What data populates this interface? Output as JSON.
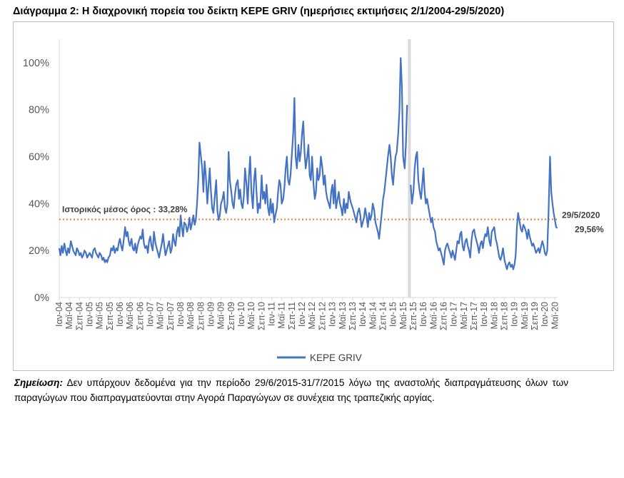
{
  "title": "Διάγραμμα 2: Η διαχρονική πορεία του δείκτη ΚΕΡΕ GRIV (ημερήσιες εκτιμήσεις 2/1/2004-29/5/2020)",
  "note": {
    "lead": "Σημείωση:",
    "text": "Δεν υπάρχουν δεδομένα για την περίοδο 29/6/2015-31/7/2015 λόγω της αναστολής διαπραγμάτευσης όλων των παραγώγων που διαπραγματεύονται στην Αγορά Παραγώγων σε συνέχεια της τραπεζικής αργίας."
  },
  "colors": {
    "series": "#4472c4",
    "mean": "#ed7d31",
    "gap": "#d9d9d9",
    "axis": "#d9d9d9"
  },
  "chart_data": {
    "type": "line",
    "title": "",
    "xlabel": "",
    "ylabel": "",
    "ylim": [
      0,
      110
    ],
    "yticks": [
      0,
      20,
      40,
      60,
      80,
      100
    ],
    "ytick_labels": [
      "0%",
      "20%",
      "40%",
      "60%",
      "80%",
      "100%"
    ],
    "xlim": [
      2004.0,
      2020.42
    ],
    "x_tick_labels": [
      "Ιαν-04",
      "Μαϊ-04",
      "Σεπ-04",
      "Ιαν-05",
      "Μαϊ-05",
      "Σεπ-05",
      "Ιαν-06",
      "Μαϊ-06",
      "Σεπ-06",
      "Ιαν-07",
      "Μαϊ-07",
      "Σεπ-07",
      "Ιαν-08",
      "Μαϊ-08",
      "Σεπ-08",
      "Ιαν-09",
      "Μαϊ-09",
      "Σεπ-09",
      "Ιαν-10",
      "Μαϊ-10",
      "Σεπ-10",
      "Ιαν-11",
      "Μαϊ-11",
      "Σεπ-11",
      "Ιαν-12",
      "Μαϊ-12",
      "Σεπ-12",
      "Ιαν-13",
      "Μαϊ-13",
      "Σεπ-13",
      "Ιαν-14",
      "Μαϊ-14",
      "Σεπ-14",
      "Ιαν-15",
      "Μαϊ-15",
      "Σεπ-15",
      "Ιαν-16",
      "Μαϊ-16",
      "Σεπ-16",
      "Ιαν-17",
      "Μαϊ-17",
      "Σεπ-17",
      "Ιαν-18",
      "Μαϊ-18",
      "Σεπ-18",
      "Ιαν-19",
      "Μαϊ-19",
      "Σεπ-19",
      "Ιαν-20",
      "Μαϊ-20"
    ],
    "grid": false,
    "legend": "bottom",
    "mean_line": {
      "value": 33.28,
      "label": "Ιστορικός μέσος όρος : 33,28%"
    },
    "gap_period": {
      "from": 2015.49,
      "to": 2015.58
    },
    "end_annotation": {
      "date": "29/5/2020",
      "value_label": "29,56%",
      "value": 29.56
    },
    "series": [
      {
        "name": "ΚΕΡΕ GRIV",
        "x": [
          2004.0,
          2004.04,
          2004.08,
          2004.12,
          2004.17,
          2004.21,
          2004.25,
          2004.29,
          2004.33,
          2004.38,
          2004.42,
          2004.46,
          2004.5,
          2004.54,
          2004.58,
          2004.62,
          2004.67,
          2004.71,
          2004.75,
          2004.79,
          2004.83,
          2004.88,
          2004.92,
          2004.96,
          2005.0,
          2005.04,
          2005.08,
          2005.12,
          2005.17,
          2005.21,
          2005.25,
          2005.29,
          2005.33,
          2005.38,
          2005.42,
          2005.46,
          2005.5,
          2005.54,
          2005.58,
          2005.62,
          2005.67,
          2005.71,
          2005.75,
          2005.79,
          2005.83,
          2005.88,
          2005.92,
          2005.96,
          2006.0,
          2006.04,
          2006.08,
          2006.12,
          2006.17,
          2006.21,
          2006.25,
          2006.29,
          2006.33,
          2006.38,
          2006.42,
          2006.46,
          2006.5,
          2006.54,
          2006.58,
          2006.62,
          2006.67,
          2006.71,
          2006.75,
          2006.79,
          2006.83,
          2006.88,
          2006.92,
          2006.96,
          2007.0,
          2007.04,
          2007.08,
          2007.12,
          2007.17,
          2007.21,
          2007.25,
          2007.29,
          2007.33,
          2007.38,
          2007.42,
          2007.46,
          2007.5,
          2007.54,
          2007.58,
          2007.62,
          2007.67,
          2007.71,
          2007.75,
          2007.79,
          2007.83,
          2007.88,
          2007.92,
          2007.96,
          2008.0,
          2008.04,
          2008.08,
          2008.12,
          2008.17,
          2008.21,
          2008.25,
          2008.29,
          2008.33,
          2008.38,
          2008.42,
          2008.46,
          2008.5,
          2008.54,
          2008.58,
          2008.62,
          2008.67,
          2008.71,
          2008.75,
          2008.79,
          2008.83,
          2008.88,
          2008.92,
          2008.96,
          2009.0,
          2009.04,
          2009.08,
          2009.12,
          2009.17,
          2009.21,
          2009.25,
          2009.29,
          2009.33,
          2009.38,
          2009.42,
          2009.46,
          2009.5,
          2009.54,
          2009.58,
          2009.62,
          2009.67,
          2009.71,
          2009.75,
          2009.79,
          2009.83,
          2009.88,
          2009.92,
          2009.96,
          2010.0,
          2010.04,
          2010.08,
          2010.12,
          2010.17,
          2010.21,
          2010.25,
          2010.29,
          2010.33,
          2010.38,
          2010.42,
          2010.46,
          2010.5,
          2010.54,
          2010.58,
          2010.62,
          2010.67,
          2010.71,
          2010.75,
          2010.79,
          2010.83,
          2010.88,
          2010.92,
          2010.96,
          2011.0,
          2011.04,
          2011.08,
          2011.12,
          2011.17,
          2011.21,
          2011.25,
          2011.29,
          2011.33,
          2011.38,
          2011.42,
          2011.46,
          2011.5,
          2011.54,
          2011.58,
          2011.62,
          2011.67,
          2011.71,
          2011.75,
          2011.79,
          2011.83,
          2011.88,
          2011.92,
          2011.96,
          2012.0,
          2012.04,
          2012.08,
          2012.12,
          2012.17,
          2012.21,
          2012.25,
          2012.29,
          2012.33,
          2012.38,
          2012.42,
          2012.46,
          2012.5,
          2012.54,
          2012.58,
          2012.62,
          2012.67,
          2012.71,
          2012.75,
          2012.79,
          2012.83,
          2012.88,
          2012.92,
          2012.96,
          2013.0,
          2013.04,
          2013.08,
          2013.12,
          2013.17,
          2013.21,
          2013.25,
          2013.29,
          2013.33,
          2013.38,
          2013.42,
          2013.46,
          2013.5,
          2013.54,
          2013.58,
          2013.62,
          2013.67,
          2013.71,
          2013.75,
          2013.79,
          2013.83,
          2013.88,
          2013.92,
          2013.96,
          2014.0,
          2014.04,
          2014.08,
          2014.12,
          2014.17,
          2014.21,
          2014.25,
          2014.29,
          2014.33,
          2014.38,
          2014.42,
          2014.46,
          2014.5,
          2014.54,
          2014.58,
          2014.62,
          2014.67,
          2014.71,
          2014.75,
          2014.79,
          2014.83,
          2014.88,
          2014.92,
          2014.96,
          2015.0,
          2015.04,
          2015.08,
          2015.12,
          2015.17,
          2015.21,
          2015.25,
          2015.29,
          2015.33,
          2015.38,
          2015.42,
          2015.46,
          2015.58,
          2015.62,
          2015.67,
          2015.71,
          2015.75,
          2015.79,
          2015.83,
          2015.88,
          2015.92,
          2015.96,
          2016.0,
          2016.04,
          2016.08,
          2016.12,
          2016.17,
          2016.21,
          2016.25,
          2016.29,
          2016.33,
          2016.38,
          2016.42,
          2016.46,
          2016.5,
          2016.54,
          2016.58,
          2016.62,
          2016.67,
          2016.71,
          2016.75,
          2016.79,
          2016.83,
          2016.88,
          2016.92,
          2016.96,
          2017.0,
          2017.04,
          2017.08,
          2017.12,
          2017.17,
          2017.21,
          2017.25,
          2017.29,
          2017.33,
          2017.38,
          2017.42,
          2017.46,
          2017.5,
          2017.54,
          2017.58,
          2017.62,
          2017.67,
          2017.71,
          2017.75,
          2017.79,
          2017.83,
          2017.88,
          2017.92,
          2017.96,
          2018.0,
          2018.04,
          2018.08,
          2018.12,
          2018.17,
          2018.21,
          2018.25,
          2018.29,
          2018.33,
          2018.38,
          2018.42,
          2018.46,
          2018.5,
          2018.54,
          2018.58,
          2018.62,
          2018.67,
          2018.71,
          2018.75,
          2018.79,
          2018.83,
          2018.88,
          2018.92,
          2018.96,
          2019.0,
          2019.04,
          2019.08,
          2019.12,
          2019.17,
          2019.21,
          2019.25,
          2019.29,
          2019.33,
          2019.38,
          2019.42,
          2019.46,
          2019.5,
          2019.54,
          2019.58,
          2019.62,
          2019.67,
          2019.71,
          2019.75,
          2019.79,
          2019.83,
          2019.88,
          2019.92,
          2019.96,
          2020.0,
          2020.04,
          2020.08,
          2020.12,
          2020.17,
          2020.21,
          2020.25,
          2020.29,
          2020.33,
          2020.37,
          2020.41
        ],
        "values": [
          21,
          18,
          22,
          19,
          23,
          20,
          18,
          21,
          19,
          24,
          22,
          20,
          19,
          18,
          21,
          20,
          18,
          19,
          17,
          18,
          20,
          19,
          17,
          18,
          19,
          18,
          17,
          20,
          21,
          19,
          18,
          17,
          19,
          18,
          16,
          17,
          15,
          16,
          15,
          17,
          18,
          21,
          20,
          22,
          19,
          21,
          20,
          23,
          25,
          22,
          20,
          24,
          30,
          26,
          28,
          24,
          22,
          25,
          21,
          20,
          23,
          19,
          22,
          24,
          26,
          25,
          29,
          23,
          21,
          22,
          19,
          24,
          26,
          22,
          20,
          28,
          23,
          21,
          19,
          17,
          20,
          23,
          27,
          22,
          18,
          20,
          22,
          24,
          19,
          21,
          27,
          24,
          22,
          28,
          30,
          26,
          35,
          30,
          26,
          32,
          31,
          28,
          30,
          34,
          29,
          32,
          35,
          31,
          33,
          40,
          50,
          66,
          60,
          55,
          45,
          58,
          52,
          40,
          48,
          55,
          45,
          38,
          36,
          42,
          50,
          37,
          33,
          35,
          40,
          42,
          45,
          38,
          36,
          40,
          62,
          50,
          45,
          40,
          38,
          44,
          48,
          50,
          42,
          46,
          40,
          38,
          43,
          55,
          48,
          40,
          52,
          60,
          45,
          38,
          50,
          55,
          45,
          36,
          40,
          38,
          52,
          42,
          45,
          40,
          48,
          38,
          35,
          42,
          36,
          40,
          32,
          35,
          38,
          45,
          50,
          48,
          40,
          42,
          47,
          55,
          60,
          50,
          48,
          52,
          62,
          70,
          85,
          60,
          55,
          65,
          58,
          62,
          70,
          75,
          62,
          55,
          60,
          65,
          52,
          50,
          60,
          48,
          42,
          45,
          55,
          50,
          52,
          60,
          55,
          48,
          52,
          45,
          42,
          40,
          38,
          45,
          48,
          40,
          50,
          38,
          42,
          45,
          40,
          38,
          35,
          42,
          36,
          40,
          38,
          45,
          42,
          40,
          38,
          36,
          34,
          32,
          36,
          38,
          35,
          30,
          32,
          34,
          38,
          35,
          30,
          36,
          33,
          35,
          40,
          37,
          32,
          30,
          28,
          25,
          30,
          35,
          42,
          45,
          50,
          55,
          60,
          65,
          60,
          52,
          48,
          55,
          60,
          62,
          70,
          80,
          102,
          90,
          60,
          55,
          65,
          82,
          48,
          40,
          45,
          55,
          60,
          62,
          50,
          45,
          42,
          48,
          55,
          45,
          40,
          42,
          38,
          35,
          32,
          34,
          30,
          28,
          24,
          22,
          20,
          21,
          19,
          17,
          14,
          20,
          22,
          23,
          21,
          19,
          17,
          20,
          18,
          16,
          20,
          24,
          23,
          27,
          28,
          22,
          20,
          24,
          25,
          22,
          20,
          17,
          24,
          28,
          29,
          26,
          24,
          22,
          19,
          23,
          24,
          21,
          25,
          27,
          26,
          30,
          24,
          22,
          28,
          29,
          30,
          25,
          23,
          20,
          17,
          16,
          18,
          21,
          16,
          14,
          12,
          14,
          15,
          13,
          14,
          12,
          14,
          18,
          30,
          36,
          32,
          29,
          28,
          31,
          30,
          28,
          25,
          29,
          26,
          24,
          22,
          23,
          21,
          19,
          20,
          21,
          19,
          22,
          24,
          22,
          19,
          18,
          20,
          35,
          60,
          45,
          40,
          36,
          33,
          30,
          29.56
        ]
      }
    ]
  },
  "legend": {
    "label": "ΚΕΡΕ GRIV"
  }
}
